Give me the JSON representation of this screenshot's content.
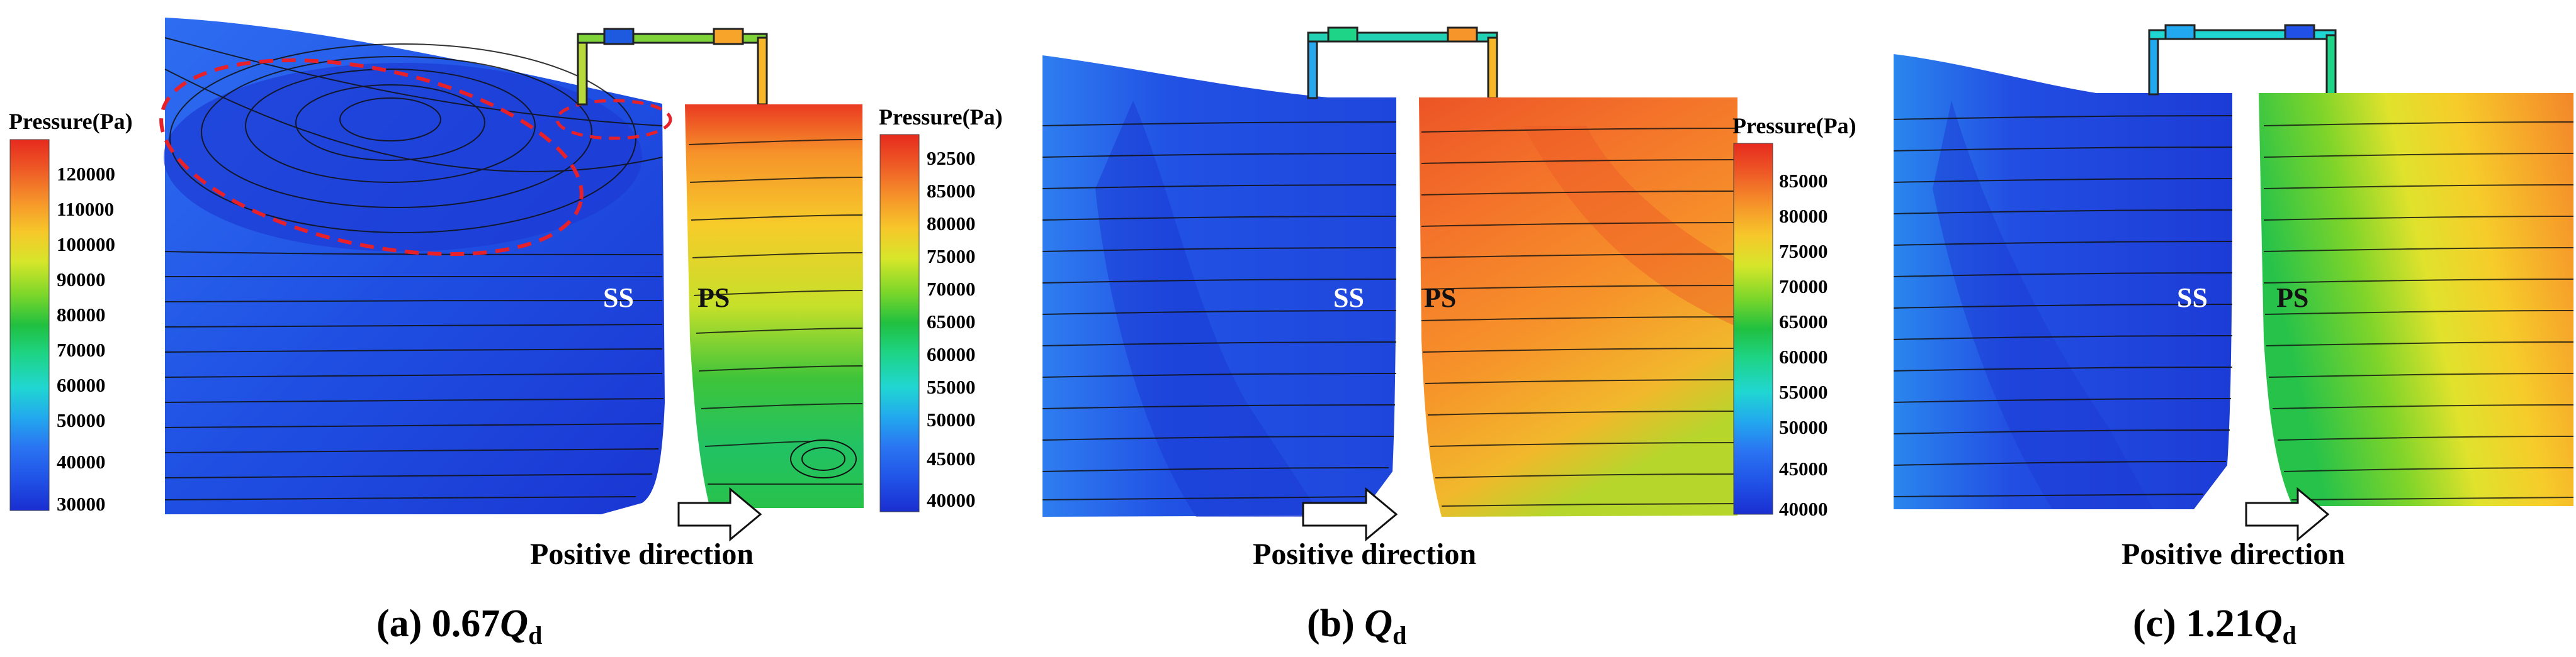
{
  "colors": {
    "colormap": [
      "#1a2ed0",
      "#2050e6",
      "#2a74f2",
      "#22a8ee",
      "#20d6d2",
      "#1ed486",
      "#20c040",
      "#7ad62a",
      "#d6e62a",
      "#f6c82a",
      "#f6962a",
      "#ee5a26",
      "#e62a1e"
    ],
    "side_label_ss": "#ffffff",
    "side_label_ps": "#111111",
    "vortex_marker": "#e8202a",
    "streamline": "#101010"
  },
  "panels": [
    {
      "id": "a",
      "caption_prefix": "(a) 0.67",
      "caption_q": "Q",
      "caption_sub": "d",
      "colorbar": {
        "title": "Pressure(Pa)",
        "ticks": [
          "120000",
          "110000",
          "100000",
          "90000",
          "80000",
          "70000",
          "60000",
          "50000",
          "40000",
          "30000"
        ]
      },
      "ss_label": "SS",
      "ps_label": "PS",
      "arrow_label": "Positive direction"
    },
    {
      "id": "b",
      "caption_prefix": "(b) ",
      "caption_q": "Q",
      "caption_sub": "d",
      "colorbar": {
        "title": "Pressure(Pa)",
        "ticks": [
          "92500",
          "85000",
          "80000",
          "75000",
          "70000",
          "65000",
          "60000",
          "55000",
          "50000",
          "45000",
          "40000"
        ]
      },
      "ss_label": "SS",
      "ps_label": "PS",
      "arrow_label": "Positive direction"
    },
    {
      "id": "c",
      "caption_prefix": "(c) 1.21",
      "caption_q": "Q",
      "caption_sub": "d",
      "colorbar": {
        "title": "Pressure(Pa)",
        "ticks": [
          "85000",
          "80000",
          "75000",
          "70000",
          "65000",
          "60000",
          "55000",
          "50000",
          "45000",
          "40000"
        ]
      },
      "ss_label": "SS",
      "ps_label": "PS",
      "arrow_label": "Positive direction"
    }
  ]
}
